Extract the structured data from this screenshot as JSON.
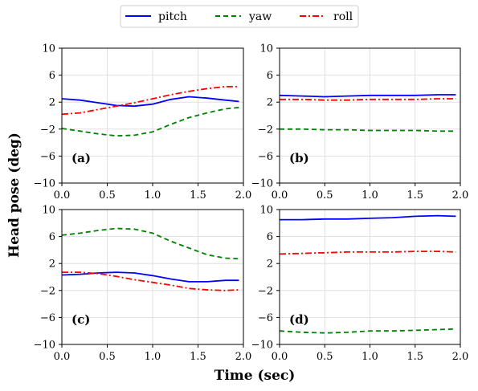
{
  "figure": {
    "xlabel": "Time (sec)",
    "ylabel": "Head pose (deg)"
  },
  "legend": {
    "placement": "top-center",
    "items": [
      {
        "label": "pitch",
        "color": "#0000ff",
        "style": "solid"
      },
      {
        "label": "yaw",
        "color": "#008000",
        "style": "dashed"
      },
      {
        "label": "roll",
        "color": "#ff0000",
        "style": "dashdot"
      }
    ]
  },
  "chart_data": [
    {
      "type": "line",
      "panel_label": "(a)",
      "xlim": [
        0,
        2
      ],
      "ylim": [
        -10,
        10
      ],
      "xticks": [
        "0.0",
        "0.5",
        "1.0",
        "1.5",
        "2.0"
      ],
      "yticks": [
        "10",
        "6",
        "2",
        "−2",
        "−6",
        "−10"
      ],
      "grid": true,
      "x": [
        0,
        0.2,
        0.4,
        0.6,
        0.8,
        1.0,
        1.2,
        1.4,
        1.6,
        1.8,
        1.95
      ],
      "series": [
        {
          "name": "pitch",
          "color": "#0000ff",
          "style": "solid",
          "values": [
            2.5,
            2.3,
            1.9,
            1.5,
            1.4,
            1.7,
            2.4,
            2.8,
            2.6,
            2.3,
            2.1
          ]
        },
        {
          "name": "yaw",
          "color": "#008000",
          "style": "dashed",
          "values": [
            -1.9,
            -2.3,
            -2.7,
            -3.0,
            -2.9,
            -2.4,
            -1.3,
            -0.3,
            0.4,
            1.0,
            1.2
          ]
        },
        {
          "name": "roll",
          "color": "#ff0000",
          "style": "dashdot",
          "values": [
            0.2,
            0.4,
            0.9,
            1.4,
            1.9,
            2.5,
            3.1,
            3.6,
            4.0,
            4.3,
            4.3
          ]
        }
      ]
    },
    {
      "type": "line",
      "panel_label": "(b)",
      "xlim": [
        0,
        2
      ],
      "ylim": [
        -10,
        10
      ],
      "xticks": [
        "0.0",
        "0.5",
        "1.0",
        "1.5",
        "2.0"
      ],
      "yticks": [
        "10",
        "6",
        "2",
        "−2",
        "−6",
        "−10"
      ],
      "grid": true,
      "x": [
        0,
        0.25,
        0.5,
        0.75,
        1.0,
        1.25,
        1.5,
        1.75,
        1.95
      ],
      "series": [
        {
          "name": "pitch",
          "color": "#0000ff",
          "style": "solid",
          "values": [
            3.0,
            2.9,
            2.8,
            2.9,
            3.0,
            3.0,
            3.0,
            3.1,
            3.1
          ]
        },
        {
          "name": "yaw",
          "color": "#008000",
          "style": "dashed",
          "values": [
            -2.0,
            -2.0,
            -2.1,
            -2.1,
            -2.2,
            -2.2,
            -2.2,
            -2.3,
            -2.3
          ]
        },
        {
          "name": "roll",
          "color": "#ff0000",
          "style": "dashdot",
          "values": [
            2.4,
            2.4,
            2.3,
            2.3,
            2.4,
            2.4,
            2.4,
            2.5,
            2.5
          ]
        }
      ]
    },
    {
      "type": "line",
      "panel_label": "(c)",
      "xlim": [
        0,
        2
      ],
      "ylim": [
        -10,
        10
      ],
      "xticks": [
        "0.0",
        "0.5",
        "1.0",
        "1.5",
        "2.0"
      ],
      "yticks": [
        "10",
        "6",
        "2",
        "−2",
        "−6",
        "−10"
      ],
      "grid": true,
      "x": [
        0,
        0.2,
        0.4,
        0.6,
        0.8,
        1.0,
        1.2,
        1.4,
        1.6,
        1.8,
        1.95
      ],
      "series": [
        {
          "name": "pitch",
          "color": "#0000ff",
          "style": "solid",
          "values": [
            0.3,
            0.4,
            0.6,
            0.7,
            0.6,
            0.2,
            -0.3,
            -0.7,
            -0.7,
            -0.5,
            -0.5
          ]
        },
        {
          "name": "yaw",
          "color": "#008000",
          "style": "dashed",
          "values": [
            6.2,
            6.5,
            6.9,
            7.2,
            7.1,
            6.5,
            5.3,
            4.3,
            3.3,
            2.8,
            2.7
          ]
        },
        {
          "name": "roll",
          "color": "#ff0000",
          "style": "dashdot",
          "values": [
            0.7,
            0.7,
            0.5,
            0.1,
            -0.4,
            -0.8,
            -1.2,
            -1.7,
            -1.9,
            -2.0,
            -1.9
          ]
        }
      ]
    },
    {
      "type": "line",
      "panel_label": "(d)",
      "xlim": [
        0,
        2
      ],
      "ylim": [
        -10,
        10
      ],
      "xticks": [
        "0.0",
        "0.5",
        "1.0",
        "1.5",
        "2.0"
      ],
      "yticks": [
        "10",
        "6",
        "2",
        "−2",
        "−6",
        "−10"
      ],
      "grid": true,
      "x": [
        0,
        0.25,
        0.5,
        0.75,
        1.0,
        1.25,
        1.5,
        1.75,
        1.95
      ],
      "series": [
        {
          "name": "pitch",
          "color": "#0000ff",
          "style": "solid",
          "values": [
            8.5,
            8.5,
            8.6,
            8.6,
            8.7,
            8.8,
            9.0,
            9.1,
            9.0
          ]
        },
        {
          "name": "yaw",
          "color": "#008000",
          "style": "dashed",
          "values": [
            -8.0,
            -8.2,
            -8.3,
            -8.2,
            -8.0,
            -8.0,
            -7.9,
            -7.8,
            -7.7
          ]
        },
        {
          "name": "roll",
          "color": "#ff0000",
          "style": "dashdot",
          "values": [
            3.4,
            3.5,
            3.6,
            3.7,
            3.7,
            3.7,
            3.8,
            3.8,
            3.7
          ]
        }
      ]
    }
  ]
}
